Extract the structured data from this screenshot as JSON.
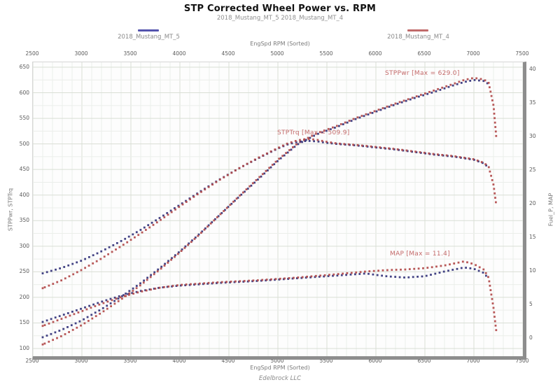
{
  "chart_data": {
    "type": "scatter",
    "title": "STP Corrected Wheel Power vs. RPM",
    "subtitle": "2018_Mustang_MT_5 2018_Mustang_MT_4",
    "footer": "Edelbrock LLC",
    "axes": {
      "x": {
        "label_top": "EngSpd RPM  (Sorted)",
        "label_bottom": "EngSpd RPM  (Sorted)",
        "min": 2500,
        "max": 7500,
        "ticks": [
          2500,
          3000,
          3500,
          4000,
          4500,
          5000,
          5500,
          6000,
          6500,
          7000,
          7500
        ]
      },
      "y_left": {
        "label": "STPPwr,  STPTrq",
        "min": 100,
        "max": 650,
        "ticks": [
          650,
          600,
          550,
          500,
          450,
          400,
          350,
          300,
          250,
          200,
          150,
          100
        ]
      },
      "y_right": {
        "label": "Fuel_P,  MAP",
        "min": 0,
        "max": 40,
        "ticks": [
          40,
          35,
          30,
          25,
          20,
          15,
          10,
          5,
          0
        ]
      },
      "grid": "on"
    },
    "legend": [
      {
        "label": "2018_Mustang_MT_5",
        "color": "#5353ad"
      },
      {
        "label": "2018_Mustang_MT_4",
        "color": "#c06a6a"
      }
    ],
    "colors": {
      "run5": "#33337a",
      "run4": "#b24a4a",
      "annotation": "#c46a6a",
      "grid_minor": "#ebeeea",
      "grid_major": "#d9ded5"
    },
    "annotations": [
      {
        "name": "stppwr-max",
        "text": "STPPwr  [Max = 629.0]",
        "rpm": 6100,
        "value": 628,
        "axis": "left"
      },
      {
        "name": "stptrq-max",
        "text": "STPTrq  [Max = 509.9]",
        "rpm": 5000,
        "value": 512,
        "axis": "left"
      },
      {
        "name": "map-max",
        "text": "MAP  [Max = 11.4]",
        "rpm": 6150,
        "value": 11.8,
        "axis": "right"
      }
    ],
    "series": [
      {
        "name": "STPPwr 2018_Mustang_MT_5",
        "axis": "left",
        "color": "#33337a",
        "points": [
          [
            2600,
            122
          ],
          [
            2800,
            137
          ],
          [
            3000,
            155
          ],
          [
            3200,
            177
          ],
          [
            3400,
            201
          ],
          [
            3600,
            228
          ],
          [
            3800,
            258
          ],
          [
            4000,
            290
          ],
          [
            4200,
            324
          ],
          [
            4400,
            360
          ],
          [
            4600,
            396
          ],
          [
            4800,
            431
          ],
          [
            5000,
            467
          ],
          [
            5200,
            499
          ],
          [
            5400,
            519
          ],
          [
            5600,
            533
          ],
          [
            5800,
            549
          ],
          [
            6000,
            563
          ],
          [
            6200,
            577
          ],
          [
            6400,
            590
          ],
          [
            6600,
            602
          ],
          [
            6800,
            615
          ],
          [
            6900,
            621
          ],
          [
            7000,
            625
          ],
          [
            7100,
            623
          ],
          [
            7150,
            617
          ]
        ]
      },
      {
        "name": "STPPwr 2018_Mustang_MT_4",
        "axis": "left",
        "color": "#b24a4a",
        "points": [
          [
            2600,
            108
          ],
          [
            2800,
            125
          ],
          [
            3000,
            146
          ],
          [
            3200,
            170
          ],
          [
            3400,
            196
          ],
          [
            3600,
            224
          ],
          [
            3800,
            255
          ],
          [
            4000,
            288
          ],
          [
            4200,
            323
          ],
          [
            4400,
            360
          ],
          [
            4600,
            397
          ],
          [
            4800,
            433
          ],
          [
            5000,
            469
          ],
          [
            5200,
            501
          ],
          [
            5400,
            521
          ],
          [
            5600,
            535
          ],
          [
            5800,
            551
          ],
          [
            6000,
            565
          ],
          [
            6200,
            579
          ],
          [
            6400,
            592
          ],
          [
            6600,
            605
          ],
          [
            6800,
            618
          ],
          [
            6900,
            625
          ],
          [
            7000,
            629
          ],
          [
            7100,
            626
          ],
          [
            7150,
            620
          ],
          [
            7200,
            575
          ],
          [
            7230,
            510
          ]
        ]
      },
      {
        "name": "STPTrq 2018_Mustang_MT_5",
        "axis": "left",
        "color": "#33337a",
        "points": [
          [
            2600,
            247
          ],
          [
            2800,
            258
          ],
          [
            3000,
            272
          ],
          [
            3200,
            290
          ],
          [
            3400,
            310
          ],
          [
            3600,
            332
          ],
          [
            3800,
            356
          ],
          [
            4000,
            381
          ],
          [
            4200,
            406
          ],
          [
            4400,
            430
          ],
          [
            4600,
            452
          ],
          [
            4800,
            472
          ],
          [
            5000,
            491
          ],
          [
            5100,
            499
          ],
          [
            5200,
            504
          ],
          [
            5300,
            506
          ],
          [
            5400,
            505
          ],
          [
            5500,
            502
          ],
          [
            5600,
            500
          ],
          [
            5800,
            497
          ],
          [
            6000,
            493
          ],
          [
            6200,
            489
          ],
          [
            6400,
            484
          ],
          [
            6600,
            479
          ],
          [
            6800,
            475
          ],
          [
            7000,
            469
          ],
          [
            7100,
            462
          ],
          [
            7150,
            454
          ]
        ]
      },
      {
        "name": "STPTrq 2018_Mustang_MT_4",
        "axis": "left",
        "color": "#b24a4a",
        "points": [
          [
            2600,
            218
          ],
          [
            2800,
            234
          ],
          [
            3000,
            254
          ],
          [
            3200,
            276
          ],
          [
            3400,
            300
          ],
          [
            3600,
            325
          ],
          [
            3800,
            351
          ],
          [
            4000,
            378
          ],
          [
            4200,
            404
          ],
          [
            4400,
            429
          ],
          [
            4600,
            452
          ],
          [
            4800,
            473
          ],
          [
            5000,
            492
          ],
          [
            5100,
            501
          ],
          [
            5200,
            507
          ],
          [
            5300,
            509.9
          ],
          [
            5400,
            508
          ],
          [
            5500,
            504
          ],
          [
            5600,
            501
          ],
          [
            5800,
            498
          ],
          [
            6000,
            494
          ],
          [
            6200,
            490
          ],
          [
            6400,
            485
          ],
          [
            6600,
            480
          ],
          [
            6800,
            476
          ],
          [
            7000,
            470
          ],
          [
            7100,
            463
          ],
          [
            7150,
            456
          ],
          [
            7200,
            420
          ],
          [
            7230,
            378
          ]
        ]
      },
      {
        "name": "MAP 2018_Mustang_MT_5",
        "axis": "right",
        "color": "#33337a",
        "points": [
          [
            2600,
            2.4
          ],
          [
            2800,
            3.4
          ],
          [
            3000,
            4.4
          ],
          [
            3200,
            5.4
          ],
          [
            3400,
            6.3
          ],
          [
            3600,
            7.0
          ],
          [
            3800,
            7.5
          ],
          [
            4000,
            7.8
          ],
          [
            4400,
            8.2
          ],
          [
            4800,
            8.5
          ],
          [
            5200,
            8.9
          ],
          [
            5600,
            9.3
          ],
          [
            5900,
            9.6
          ],
          [
            6100,
            9.2
          ],
          [
            6300,
            9.0
          ],
          [
            6500,
            9.2
          ],
          [
            6700,
            9.9
          ],
          [
            6900,
            10.5
          ],
          [
            7000,
            10.3
          ],
          [
            7100,
            9.7
          ],
          [
            7150,
            8.8
          ]
        ]
      },
      {
        "name": "MAP 2018_Mustang_MT_4",
        "axis": "right",
        "color": "#b24a4a",
        "points": [
          [
            2600,
            1.8
          ],
          [
            2800,
            2.9
          ],
          [
            3000,
            4.0
          ],
          [
            3200,
            5.1
          ],
          [
            3400,
            6.1
          ],
          [
            3600,
            6.9
          ],
          [
            3800,
            7.5
          ],
          [
            4000,
            7.9
          ],
          [
            4400,
            8.3
          ],
          [
            4800,
            8.6
          ],
          [
            5200,
            9.0
          ],
          [
            5600,
            9.5
          ],
          [
            5900,
            9.9
          ],
          [
            6100,
            10.1
          ],
          [
            6300,
            10.2
          ],
          [
            6500,
            10.4
          ],
          [
            6700,
            10.8
          ],
          [
            6900,
            11.4
          ],
          [
            7000,
            11.0
          ],
          [
            7100,
            10.2
          ],
          [
            7150,
            9.0
          ],
          [
            7200,
            4.5
          ],
          [
            7230,
            0.8
          ]
        ]
      }
    ]
  }
}
